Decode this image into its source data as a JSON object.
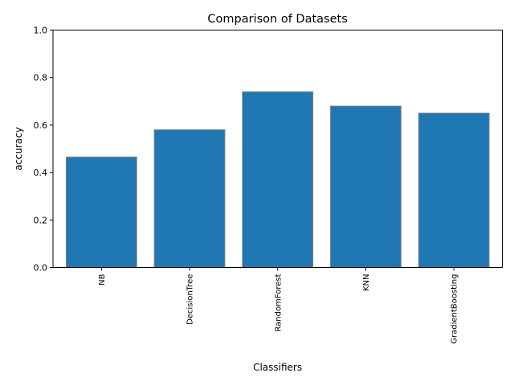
{
  "chart_data": {
    "type": "bar",
    "title": "Comparison of Datasets",
    "xlabel": "Classifiers",
    "ylabel": "accuracy",
    "categories": [
      "NB",
      "DecisionTree",
      "RandomForest",
      "KNN",
      "GradientBoosting"
    ],
    "values": [
      0.465,
      0.58,
      0.74,
      0.68,
      0.65
    ],
    "ylim": [
      0,
      1.0
    ],
    "yticks": [
      "0.0",
      "0.2",
      "0.4",
      "0.6",
      "0.8",
      "1.0"
    ],
    "grid": false,
    "legend": "none",
    "colors": {
      "bar_fill": "#1f77b4",
      "bar_edge": "#808080",
      "axis": "#000000"
    }
  }
}
